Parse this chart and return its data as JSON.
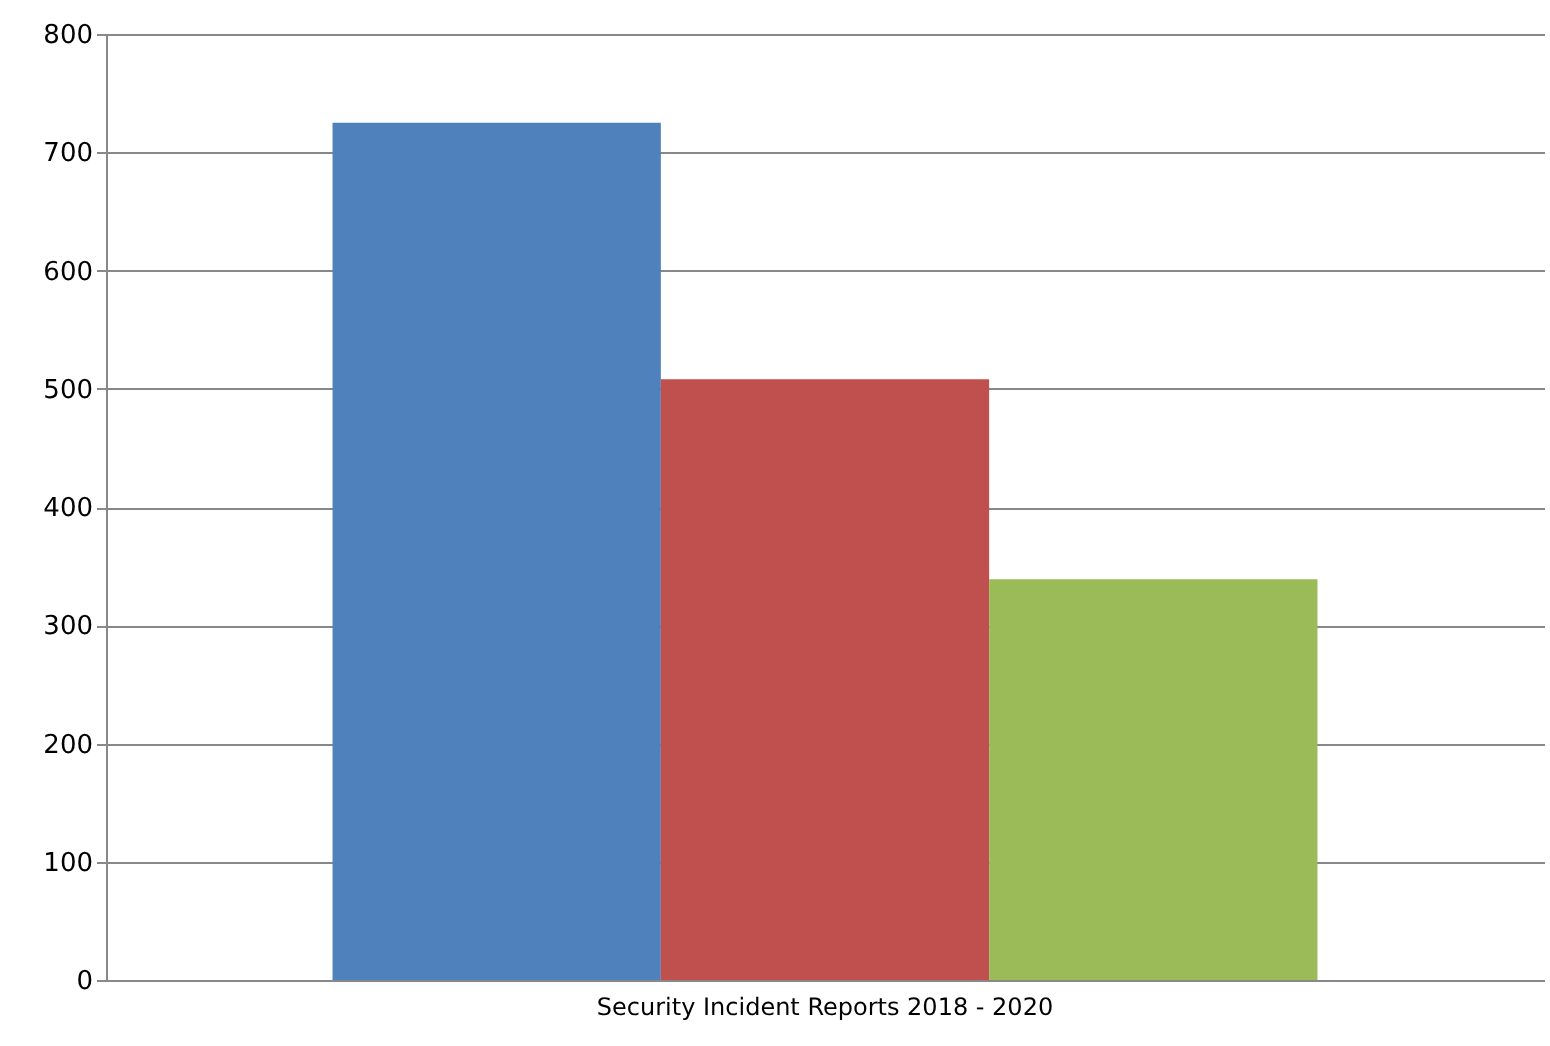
{
  "chart_data": {
    "type": "bar",
    "categories": [
      "Security Incident Reports 2018 - 2020"
    ],
    "series": [
      {
        "color": "#4f81bd",
        "values": [
          725
        ]
      },
      {
        "color": "#c0504d",
        "values": [
          508
        ]
      },
      {
        "color": "#9bbb59",
        "values": [
          339
        ]
      }
    ],
    "ylim": [
      0,
      800
    ],
    "yticks": [
      0,
      100,
      200,
      300,
      400,
      500,
      600,
      700,
      800
    ],
    "grid": "y"
  }
}
